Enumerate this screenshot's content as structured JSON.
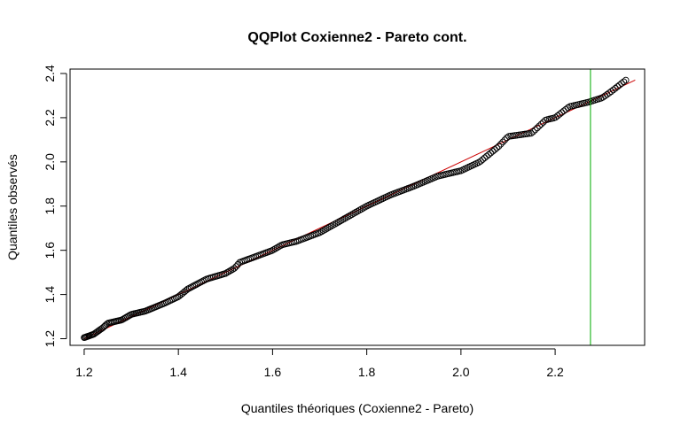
{
  "chart_data": {
    "type": "scatter",
    "title": "QQPlot Coxienne2 - Pareto cont.",
    "xlabel": "Quantiles théoriques (Coxienne2 - Pareto)",
    "ylabel": "Quantiles observés",
    "xlim": [
      1.17,
      2.39
    ],
    "ylim": [
      1.17,
      2.42
    ],
    "x_ticks": [
      1.2,
      1.4,
      1.6,
      1.8,
      2.0,
      2.2
    ],
    "x_tick_labels": [
      "1.2",
      "1.4",
      "1.6",
      "1.8",
      "2.0",
      "2.2"
    ],
    "y_ticks": [
      1.2,
      1.4,
      1.6,
      1.8,
      2.0,
      2.2,
      2.4
    ],
    "y_tick_labels": [
      "1.2",
      "1.4",
      "1.6",
      "1.8",
      "2.0",
      "2.2",
      "2.4"
    ],
    "grid": false,
    "point_style": "open-circle",
    "point_color": "#000000",
    "reference_line": {
      "x": [
        1.2,
        2.37
      ],
      "y": [
        1.2,
        2.37
      ],
      "color": "#cc0000"
    },
    "vertical_line": {
      "x": 2.275,
      "color": "#00aa00"
    },
    "anchors": [
      [
        1.2,
        1.205
      ],
      [
        1.22,
        1.22
      ],
      [
        1.24,
        1.25
      ],
      [
        1.25,
        1.27
      ],
      [
        1.28,
        1.285
      ],
      [
        1.3,
        1.31
      ],
      [
        1.33,
        1.325
      ],
      [
        1.37,
        1.36
      ],
      [
        1.4,
        1.39
      ],
      [
        1.42,
        1.425
      ],
      [
        1.46,
        1.47
      ],
      [
        1.5,
        1.495
      ],
      [
        1.52,
        1.52
      ],
      [
        1.53,
        1.545
      ],
      [
        1.6,
        1.6
      ],
      [
        1.62,
        1.625
      ],
      [
        1.65,
        1.64
      ],
      [
        1.7,
        1.68
      ],
      [
        1.75,
        1.74
      ],
      [
        1.8,
        1.8
      ],
      [
        1.85,
        1.85
      ],
      [
        1.9,
        1.89
      ],
      [
        1.95,
        1.935
      ],
      [
        2.0,
        1.96
      ],
      [
        2.04,
        2.0
      ],
      [
        2.08,
        2.07
      ],
      [
        2.1,
        2.115
      ],
      [
        2.15,
        2.13
      ],
      [
        2.18,
        2.19
      ],
      [
        2.2,
        2.2
      ],
      [
        2.23,
        2.25
      ],
      [
        2.27,
        2.27
      ],
      [
        2.3,
        2.29
      ],
      [
        2.32,
        2.32
      ],
      [
        2.35,
        2.37
      ]
    ],
    "n_points": 300
  }
}
